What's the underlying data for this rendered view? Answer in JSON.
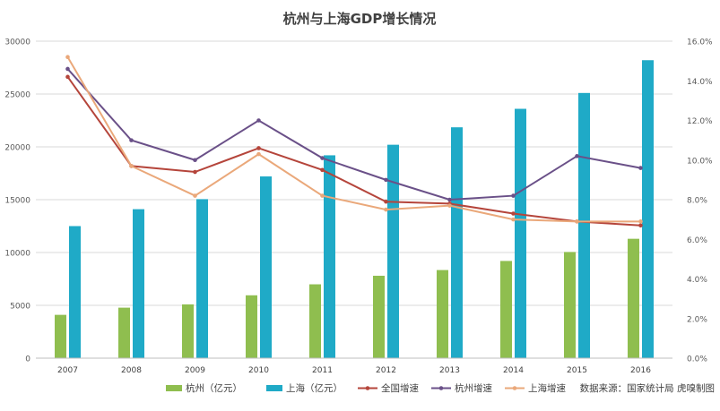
{
  "chart_data": {
    "type": "bar",
    "title": "杭州与上海GDP增长情况",
    "categories": [
      "2007",
      "2008",
      "2009",
      "2010",
      "2011",
      "2012",
      "2013",
      "2014",
      "2015",
      "2016"
    ],
    "y_left": {
      "min": 0,
      "max": 30000,
      "step": 5000,
      "ticks": [
        "0",
        "5000",
        "10000",
        "15000",
        "20000",
        "25000",
        "30000"
      ]
    },
    "y_right": {
      "min": 0,
      "max": 16,
      "step": 2,
      "ticks": [
        "0.0%",
        "2.0%",
        "4.0%",
        "6.0%",
        "8.0%",
        "10.0%",
        "12.0%",
        "14.0%",
        "16.0%"
      ]
    },
    "bar_series": [
      {
        "name": "杭州（亿元）",
        "color": "#8fbe4f",
        "values": [
          4100,
          4780,
          5090,
          5950,
          6990,
          7800,
          8340,
          9200,
          10050,
          11300
        ]
      },
      {
        "name": "上海（亿元）",
        "color": "#1faac7",
        "values": [
          12500,
          14100,
          15050,
          17200,
          19200,
          20200,
          21850,
          23600,
          25100,
          28200
        ]
      }
    ],
    "line_series": [
      {
        "name": "全国增速",
        "color": "#b5453b",
        "values": [
          14.2,
          9.7,
          9.4,
          10.6,
          9.5,
          7.9,
          7.8,
          7.3,
          6.9,
          6.7
        ]
      },
      {
        "name": "杭州增速",
        "color": "#6a5088",
        "values": [
          14.6,
          11.0,
          10.0,
          12.0,
          10.1,
          9.0,
          8.0,
          8.2,
          10.2,
          9.6
        ]
      },
      {
        "name": "上海增速",
        "color": "#eaa87a",
        "values": [
          15.2,
          9.7,
          8.2,
          10.3,
          8.2,
          7.5,
          7.7,
          7.0,
          6.9,
          6.9
        ]
      }
    ],
    "grid": true,
    "legend_position": "bottom",
    "source_note": "数据来源：国家统计局 虎嗅制图"
  }
}
